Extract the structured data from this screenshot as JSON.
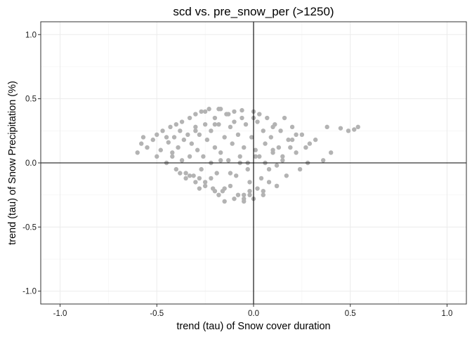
{
  "chart_data": {
    "type": "scatter",
    "title": "scd vs. pre_snow_per (>1250)",
    "xlabel": "trend (tau) of Snow cover duration",
    "ylabel": "trend (tau) of Snow Precipitation (%)",
    "xlim": [
      -1.1,
      1.1
    ],
    "ylim": [
      -1.1,
      1.1
    ],
    "x_ticks": [
      -1.0,
      -0.5,
      0.0,
      0.5,
      1.0
    ],
    "x_tick_labels": [
      "-1.0",
      "-0.5",
      "0.0",
      "0.5",
      "1.0"
    ],
    "y_ticks": [
      -1.0,
      -0.5,
      0.0,
      0.5,
      1.0
    ],
    "y_tick_labels": [
      "-1.0",
      "-0.5",
      "0.0",
      "0.5",
      "1.0"
    ],
    "grid": true,
    "reference_lines": {
      "x": 0,
      "y": 0
    },
    "point_color": "#b3b3b3",
    "series": [
      {
        "x": [
          -0.6,
          -0.58,
          -0.57,
          -0.55,
          -0.52,
          -0.5,
          -0.5,
          -0.48,
          -0.47,
          -0.45,
          -0.44,
          -0.43,
          -0.42,
          -0.41,
          -0.4,
          -0.4,
          -0.39,
          -0.38,
          -0.37,
          -0.37,
          -0.36,
          -0.35,
          -0.34,
          -0.33,
          -0.33,
          -0.32,
          -0.31,
          -0.3,
          -0.3,
          -0.29,
          -0.28,
          -0.28,
          -0.27,
          -0.26,
          -0.25,
          -0.25,
          -0.24,
          -0.23,
          -0.22,
          -0.22,
          -0.21,
          -0.2,
          -0.2,
          -0.19,
          -0.18,
          -0.17,
          -0.17,
          -0.16,
          -0.15,
          -0.14,
          -0.13,
          -0.12,
          -0.12,
          -0.11,
          -0.1,
          -0.09,
          -0.08,
          -0.07,
          -0.06,
          -0.05,
          -0.05,
          -0.04,
          -0.03,
          -0.02,
          -0.01,
          0.0,
          0.0,
          0.01,
          0.02,
          0.03,
          0.04,
          0.05,
          0.06,
          0.07,
          0.08,
          0.09,
          0.1,
          0.11,
          0.12,
          0.13,
          0.14,
          0.15,
          0.16,
          0.17,
          0.18,
          0.2,
          0.22,
          0.24,
          0.25,
          0.27,
          0.29,
          0.32,
          0.38,
          0.45,
          0.49,
          0.52,
          0.54,
          -0.35,
          -0.3,
          -0.28,
          -0.25,
          -0.2,
          -0.18,
          -0.15,
          -0.1,
          -0.08,
          -0.05,
          -0.02,
          0.02,
          0.05,
          0.08,
          0.12,
          -0.42,
          -0.38,
          -0.33,
          -0.27,
          -0.22,
          -0.17,
          -0.12,
          -0.07,
          -0.03,
          0.01,
          0.06,
          0.1,
          0.15,
          0.19,
          -0.25,
          -0.18,
          -0.13,
          -0.06,
          0.03,
          -0.45,
          -0.3,
          -0.2,
          -0.1,
          0.0,
          0.1,
          0.2,
          -0.15,
          -0.05,
          0.05,
          -0.02,
          0.28,
          0.36,
          0.4,
          0.12,
          0.22
        ],
        "y": [
          0.08,
          0.15,
          0.2,
          0.12,
          0.18,
          0.22,
          0.05,
          0.1,
          0.25,
          0.0,
          0.16,
          0.28,
          0.08,
          0.2,
          0.3,
          -0.05,
          0.12,
          0.25,
          0.02,
          0.32,
          0.18,
          -0.08,
          0.22,
          0.35,
          0.05,
          0.15,
          -0.1,
          0.28,
          0.38,
          0.1,
          -0.12,
          0.22,
          0.4,
          0.05,
          0.3,
          -0.15,
          0.18,
          0.42,
          0.0,
          0.25,
          -0.2,
          0.35,
          0.12,
          -0.08,
          0.3,
          0.42,
          0.08,
          -0.22,
          0.2,
          0.38,
          0.02,
          -0.18,
          0.28,
          0.15,
          0.4,
          -0.1,
          0.22,
          0.05,
          0.35,
          -0.25,
          0.12,
          0.3,
          0.0,
          -0.15,
          0.2,
          0.4,
          -0.28,
          0.1,
          0.32,
          0.05,
          -0.12,
          0.25,
          0.15,
          0.35,
          -0.05,
          0.2,
          0.08,
          0.3,
          -0.18,
          0.12,
          0.25,
          0.02,
          0.35,
          -0.1,
          0.18,
          0.28,
          0.08,
          -0.05,
          0.22,
          0.12,
          0.15,
          0.18,
          0.28,
          0.27,
          0.25,
          0.26,
          0.28,
          -0.12,
          -0.15,
          -0.2,
          -0.18,
          -0.22,
          -0.25,
          -0.2,
          -0.28,
          -0.25,
          -0.3,
          -0.22,
          -0.2,
          -0.25,
          -0.15,
          -0.18,
          0.05,
          -0.08,
          -0.1,
          -0.05,
          -0.12,
          0.02,
          -0.08,
          0.0,
          -0.05,
          0.05,
          0.0,
          0.1,
          0.05,
          0.12,
          0.4,
          0.42,
          0.38,
          0.41,
          0.38,
          0.2,
          0.25,
          0.3,
          0.32,
          0.35,
          0.28,
          0.18,
          -0.3,
          -0.28,
          -0.22,
          -0.25,
          0.0,
          0.02,
          0.08,
          -0.02,
          0.22
        ]
      }
    ]
  }
}
